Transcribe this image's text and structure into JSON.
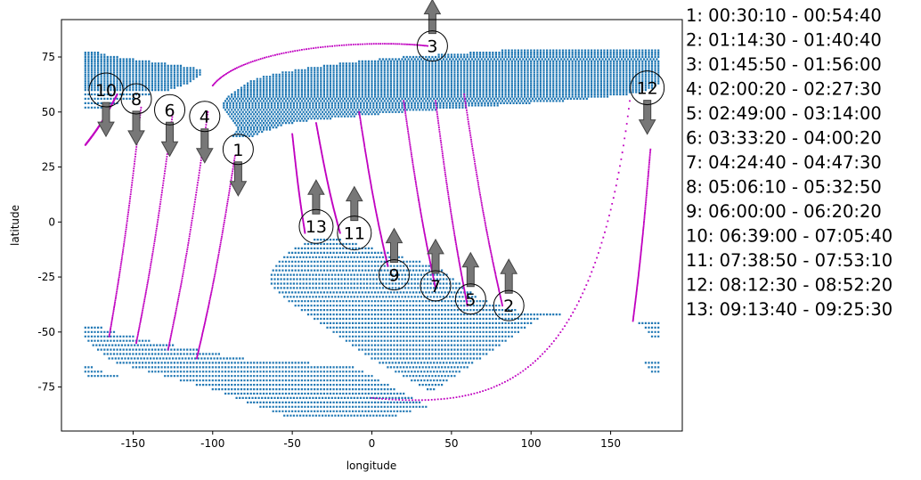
{
  "chart_data": {
    "type": "scatter",
    "title": "",
    "xlabel": "longitude",
    "ylabel": "latitude",
    "xlim": [
      -195,
      195
    ],
    "ylim": [
      -95,
      92
    ],
    "xticks": [
      -150,
      -100,
      -50,
      0,
      50,
      100,
      150
    ],
    "yticks": [
      -75,
      -50,
      -25,
      0,
      25,
      50,
      75
    ],
    "grid": false,
    "colors": {
      "coverage": "#1f77b4",
      "track": "#c000c0",
      "arrow": "#777777",
      "frame": "#000000"
    },
    "coverage_regions": [
      {
        "name": "northern",
        "rows": [
          [
            77,
            -180,
            -172
          ],
          [
            76,
            -180,
            -168
          ],
          [
            75,
            -180,
            -160
          ],
          [
            74,
            -180,
            -150
          ],
          [
            73,
            -180,
            -140
          ],
          [
            72,
            -180,
            -130
          ],
          [
            71,
            -180,
            -120
          ],
          [
            70,
            -180,
            -112
          ],
          [
            69,
            -180,
            -108
          ],
          [
            68,
            -180,
            -108
          ],
          [
            67,
            -180,
            -108
          ],
          [
            66,
            -180,
            -110
          ],
          [
            65,
            -180,
            -112
          ],
          [
            64,
            -180,
            -114
          ],
          [
            63,
            -180,
            -116
          ],
          [
            62,
            -180,
            -120
          ],
          [
            61,
            -180,
            -124
          ],
          [
            60,
            -180,
            -128
          ],
          [
            58,
            -180,
            -140
          ],
          [
            56,
            -180,
            -150
          ],
          [
            54,
            -180,
            -160
          ],
          [
            52,
            -180,
            -168
          ],
          [
            78,
            82,
            180
          ],
          [
            77,
            62,
            180
          ],
          [
            76,
            42,
            180
          ],
          [
            75,
            20,
            180
          ],
          [
            74,
            5,
            180
          ],
          [
            73,
            -8,
            180
          ],
          [
            72,
            -20,
            180
          ],
          [
            71,
            -30,
            180
          ],
          [
            70,
            -40,
            180
          ],
          [
            69,
            -48,
            180
          ],
          [
            68,
            -56,
            180
          ],
          [
            67,
            -62,
            180
          ],
          [
            66,
            -68,
            180
          ],
          [
            65,
            -72,
            180
          ],
          [
            64,
            -76,
            180
          ],
          [
            63,
            -78,
            180
          ],
          [
            62,
            -80,
            178
          ],
          [
            61,
            -82,
            176
          ],
          [
            60,
            -84,
            172
          ],
          [
            59,
            -86,
            168
          ],
          [
            58,
            -88,
            160
          ],
          [
            57,
            -90,
            148
          ],
          [
            56,
            -91,
            136
          ],
          [
            55,
            -92,
            120
          ],
          [
            54,
            -93,
            100
          ],
          [
            53,
            -93,
            80
          ],
          [
            52,
            -93,
            60
          ],
          [
            51,
            -92,
            40
          ],
          [
            50,
            -91,
            20
          ],
          [
            49,
            -90,
            5
          ],
          [
            48,
            -89,
            -10
          ],
          [
            47,
            -88,
            -25
          ],
          [
            46,
            -87,
            -40
          ],
          [
            45,
            -86,
            -50
          ],
          [
            44,
            -85,
            -56
          ],
          [
            43,
            -84,
            -60
          ],
          [
            42,
            -84,
            -64
          ],
          [
            41,
            -85,
            -68
          ],
          [
            40,
            -86,
            -72
          ],
          [
            39,
            -87,
            -75
          ]
        ]
      },
      {
        "name": "southern",
        "rows": [
          [
            -8,
            -36,
            -20
          ],
          [
            -10,
            -42,
            -10
          ],
          [
            -12,
            -48,
            0
          ],
          [
            -14,
            -52,
            10
          ],
          [
            -16,
            -55,
            20
          ],
          [
            -18,
            -58,
            30
          ],
          [
            -20,
            -60,
            38
          ],
          [
            -22,
            -62,
            44
          ],
          [
            -24,
            -63,
            48
          ],
          [
            -26,
            -63,
            52
          ],
          [
            -28,
            -63,
            55
          ],
          [
            -30,
            -61,
            58
          ],
          [
            -32,
            -58,
            62
          ],
          [
            -34,
            -55,
            66
          ],
          [
            -36,
            -52,
            72
          ],
          [
            -38,
            -48,
            80
          ],
          [
            -40,
            -44,
            90
          ],
          [
            -42,
            -40,
            118
          ],
          [
            -44,
            -36,
            104
          ],
          [
            -46,
            -32,
            100
          ],
          [
            -48,
            -28,
            96
          ],
          [
            -50,
            -24,
            92
          ],
          [
            -52,
            -20,
            88
          ],
          [
            -54,
            -16,
            84
          ],
          [
            -56,
            -12,
            80
          ],
          [
            -58,
            -8,
            76
          ],
          [
            -60,
            -4,
            72
          ],
          [
            -62,
            0,
            68
          ],
          [
            -64,
            5,
            64
          ],
          [
            -66,
            10,
            60
          ],
          [
            -68,
            15,
            56
          ],
          [
            -70,
            20,
            52
          ],
          [
            -72,
            25,
            48
          ],
          [
            -74,
            30,
            44
          ],
          [
            -76,
            35,
            40
          ],
          [
            -48,
            -180,
            -170
          ],
          [
            -50,
            -180,
            -162
          ],
          [
            -52,
            -180,
            -150
          ],
          [
            -54,
            -178,
            -140
          ],
          [
            -56,
            -175,
            -125
          ],
          [
            -58,
            -172,
            -110
          ],
          [
            -60,
            -168,
            -95
          ],
          [
            -62,
            -165,
            -80
          ],
          [
            -64,
            -160,
            -40
          ],
          [
            -66,
            -150,
            -12
          ],
          [
            -68,
            -140,
            -5
          ],
          [
            -70,
            -130,
            0
          ],
          [
            -72,
            -120,
            5
          ],
          [
            -74,
            -110,
            10
          ],
          [
            -76,
            -100,
            15
          ],
          [
            -78,
            -92,
            20
          ],
          [
            -80,
            -85,
            25
          ],
          [
            -82,
            -78,
            30
          ],
          [
            -84,
            -70,
            35
          ],
          [
            -86,
            -62,
            25
          ],
          [
            -88,
            -55,
            15
          ],
          [
            -66,
            -180,
            -176
          ],
          [
            -68,
            -180,
            -170
          ],
          [
            -70,
            -178,
            -160
          ],
          [
            -46,
            168,
            180
          ],
          [
            -48,
            172,
            180
          ],
          [
            -50,
            174,
            180
          ],
          [
            -52,
            176,
            180
          ],
          [
            -64,
            172,
            180
          ],
          [
            -66,
            174,
            180
          ],
          [
            -68,
            176,
            180
          ]
        ]
      }
    ],
    "track_passes": [
      {
        "start": [
          -86,
          30
        ],
        "end": [
          -110,
          -62
        ]
      },
      {
        "start": [
          58,
          58
        ],
        "end": [
          82,
          -38
        ]
      },
      {
        "curve": [
          [
            -100,
            62
          ],
          [
            -80,
            80
          ],
          [
            0,
            83
          ],
          [
            35,
            80
          ]
        ]
      },
      {
        "start": [
          -103,
          50
        ],
        "end": [
          -128,
          -58
        ]
      },
      {
        "start": [
          -50,
          40
        ],
        "end": [
          -42,
          -5
        ]
      },
      {
        "start": [
          -125,
          50
        ],
        "end": [
          -148,
          -55
        ]
      },
      {
        "start": [
          40,
          55
        ],
        "end": [
          60,
          -38
        ]
      },
      {
        "start": [
          -145,
          52
        ],
        "end": [
          -165,
          -52
        ]
      },
      {
        "start": [
          20,
          55
        ],
        "end": [
          40,
          -30
        ]
      },
      {
        "start": [
          -160,
          58
        ],
        "end": [
          -180,
          35
        ]
      },
      {
        "start": [
          -35,
          45
        ],
        "end": [
          -20,
          -5
        ]
      },
      {
        "curve": [
          [
            0,
            -80
          ],
          [
            80,
            -85
          ],
          [
            140,
            -75
          ],
          [
            162,
            55
          ]
        ]
      },
      {
        "start": [
          175,
          33
        ],
        "end": [
          164,
          -45
        ]
      },
      {
        "start": [
          -8,
          50
        ],
        "end": [
          10,
          -20
        ]
      }
    ],
    "annotations": [
      {
        "label": "1",
        "x": -84,
        "y": 33,
        "arrow": "down"
      },
      {
        "label": "2",
        "x": 86,
        "y": -38,
        "arrow": "up"
      },
      {
        "label": "3",
        "x": 38,
        "y": 80,
        "arrow": "up"
      },
      {
        "label": "4",
        "x": -105,
        "y": 48,
        "arrow": "down"
      },
      {
        "label": "5",
        "x": 62,
        "y": -35,
        "arrow": "up"
      },
      {
        "label": "6",
        "x": -127,
        "y": 51,
        "arrow": "down"
      },
      {
        "label": "7",
        "x": 40,
        "y": -29,
        "arrow": "up"
      },
      {
        "label": "8",
        "x": -148,
        "y": 56,
        "arrow": "down"
      },
      {
        "label": "9",
        "x": 14,
        "y": -24,
        "arrow": "up"
      },
      {
        "label": "10",
        "x": -167,
        "y": 60,
        "arrow": "down"
      },
      {
        "label": "11",
        "x": -11,
        "y": -5,
        "arrow": "up"
      },
      {
        "label": "12",
        "x": 173,
        "y": 61,
        "arrow": "down"
      },
      {
        "label": "13",
        "x": -35,
        "y": -2,
        "arrow": "up"
      }
    ],
    "legend_entries": [
      "1:  00:30:10 - 00:54:40",
      "2:  01:14:30 - 01:40:40",
      "3:  01:45:50 - 01:56:00",
      "4:  02:00:20 - 02:27:30",
      "5:  02:49:00 - 03:14:00",
      "6:  03:33:20 - 04:00:20",
      "7:  04:24:40 - 04:47:30",
      "8:  05:06:10 - 05:32:50",
      "9:  06:00:00 - 06:20:20",
      "10:  06:39:00 - 07:05:40",
      "11:  07:38:50 - 07:53:10",
      "12:  08:12:30 - 08:52:20",
      "13:  09:13:40 - 09:25:30"
    ],
    "legend_placement": "right"
  }
}
